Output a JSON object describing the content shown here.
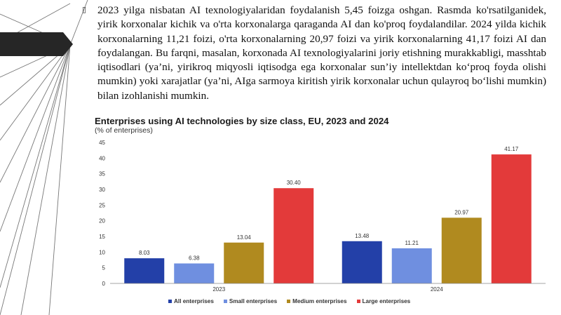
{
  "slide": {
    "bullet_glyph": "▯",
    "paragraph": "2023 yilga nisbatan AI texnologiyalaridan foydalanish 5,45 foizga oshgan. Rasmda ko'rsatilganidek, yirik korxonalar kichik va o'rta korxonalarga qaraganda AI dan ko'proq foydalandilar. 2024 yilda kichik korxonalarning 11,21 foizi, o'rta korxonalarning 20,97 foizi va yirik korxonalarning 41,17 foizi AI dan foydalangan. Bu farqni, masalan, korxonada AI texnologiyalarini joriy etishning murakkabligi, masshtab iqtisodlari (ya’ni, yirikroq miqyosli iqtisodga ega korxonalar sun’iy intellektdan ko‘proq foyda olishi mumkin) yoki xarajatlar (ya’ni, AIga sarmoya kiritish yirik korxonalar uchun qulayroq bo‘lishi mumkin) bilan izohlanishi mumkin."
  },
  "chart_data": {
    "type": "bar",
    "title": "Enterprises using AI technologies by size class, EU, 2023 and 2024",
    "subtitle": "(% of enterprises)",
    "categories": [
      "2023",
      "2024"
    ],
    "series": [
      {
        "name": "All enterprises",
        "color": "#2340a8",
        "values": [
          8.03,
          13.48
        ],
        "labels": [
          "8.03",
          "13.48"
        ]
      },
      {
        "name": "Small enterprises",
        "color": "#6f8fe0",
        "values": [
          6.38,
          11.21
        ],
        "labels": [
          "6.38",
          "11.21"
        ]
      },
      {
        "name": "Medium enterprises",
        "color": "#b08a1f",
        "values": [
          13.04,
          20.97
        ],
        "labels": [
          "13.04",
          "20.97"
        ]
      },
      {
        "name": "Large enterprises",
        "color": "#e33a3a",
        "values": [
          30.4,
          41.17
        ],
        "labels": [
          "30.40",
          "41.17"
        ]
      }
    ],
    "ylim": [
      0,
      45
    ],
    "yticks": [
      "0",
      "5",
      "10",
      "15",
      "20",
      "25",
      "30",
      "35",
      "40",
      "45"
    ],
    "grid": false,
    "legend_position": "bottom"
  }
}
